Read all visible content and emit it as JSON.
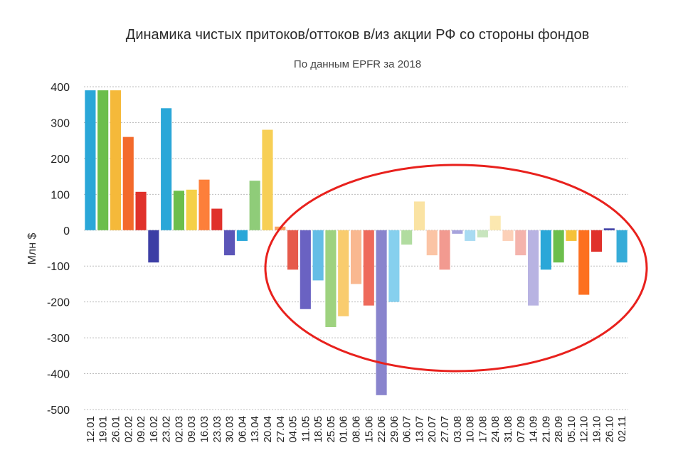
{
  "chart_data": {
    "type": "bar",
    "title": "Динамика чистых притоков/оттоков в/из акции РФ со стороны фондов",
    "subtitle": "По данным EPFR за 2018",
    "xlabel": "",
    "ylabel": "Млн $",
    "ylim": [
      -500,
      400
    ],
    "yticks": [
      400,
      300,
      200,
      100,
      0,
      -100,
      -200,
      -300,
      -400,
      -500
    ],
    "ytick_labels": [
      "400",
      "300",
      "200",
      "100",
      "0",
      "-100",
      "-200",
      "-300",
      "-400",
      "-500"
    ],
    "grid": true,
    "categories": [
      "12.01",
      "19.01",
      "26.01",
      "02.02",
      "09.02",
      "16.02",
      "23.02",
      "02.03",
      "09.03",
      "16.03",
      "23.03",
      "30.03",
      "06.04",
      "13.04",
      "20.04",
      "27.04",
      "04.05",
      "11.05",
      "18.05",
      "25.05",
      "01.06",
      "08.06",
      "15.06",
      "22.06",
      "29.06",
      "06.07",
      "13.07",
      "20.07",
      "27.07",
      "03.08",
      "10.08",
      "17.08",
      "24.08",
      "31.08",
      "07.09",
      "14.09",
      "21.09",
      "28.09",
      "05.10",
      "12.10",
      "19.10",
      "26.10",
      "02.11"
    ],
    "values": [
      390,
      390,
      390,
      260,
      107,
      -90,
      340,
      110,
      113,
      141,
      60,
      -70,
      -30,
      138,
      280,
      10,
      -110,
      -220,
      -140,
      -270,
      -240,
      -150,
      -210,
      -460,
      -200,
      -40,
      80,
      -70,
      -110,
      -10,
      -30,
      -20,
      40,
      -30,
      -70,
      -210,
      -110,
      -90,
      -30,
      -180,
      -60,
      5,
      -90
    ],
    "colors": [
      "#2aa7d8",
      "#6cbe4c",
      "#f5b93a",
      "#f36a2b",
      "#e0312b",
      "#3c3ea5",
      "#2aa7d8",
      "#6cbe4c",
      "#f5d048",
      "#fd7f3a",
      "#e0312b",
      "#5b55b8",
      "#2aa7d8",
      "#8fcc79",
      "#f7cf55",
      "#f7a060",
      "#e65a4b",
      "#6a62c2",
      "#64bde6",
      "#9ed27f",
      "#f9cc6e",
      "#f9b890",
      "#ee6a5b",
      "#8984cd",
      "#86d0ee",
      "#b1dca0",
      "#fae3a3",
      "#fbc4a5",
      "#f29a90",
      "#a7a3dc",
      "#a9dbf2",
      "#c8e5be",
      "#fce8b0",
      "#fcd0b8",
      "#f4b3ac",
      "#b8b3e2",
      "#2aa7d8",
      "#6cbe4c",
      "#f5c23a",
      "#fd7020",
      "#e0312b",
      "#3c3ea5",
      "#36acd8"
    ],
    "annotation": {
      "type": "ellipse",
      "color": "#e8211d"
    }
  }
}
